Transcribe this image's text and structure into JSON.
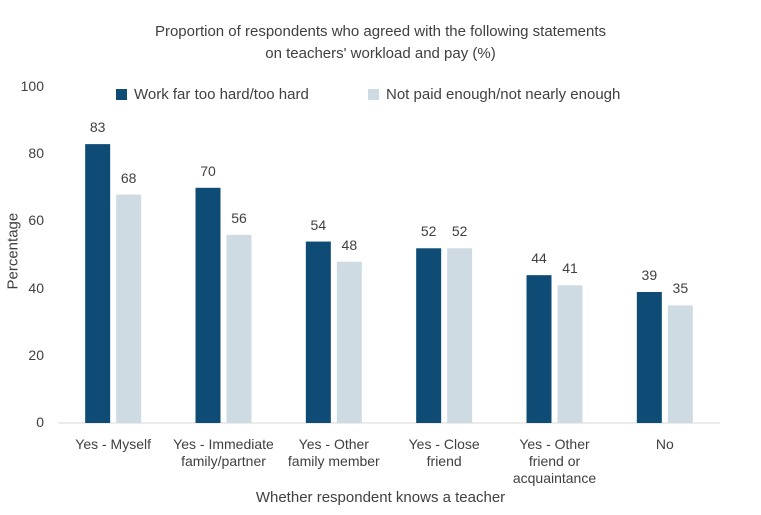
{
  "chart_data": {
    "type": "bar",
    "title_line1": "Proportion of respondents who agreed with the following statements",
    "title_line2": "on teachers' workload and pay (%)",
    "xlabel": "Whether respondent knows a teacher",
    "ylabel": "Percentage",
    "ylim": [
      0,
      100
    ],
    "yticks": [
      "0",
      "20",
      "40",
      "60",
      "80",
      "100"
    ],
    "categories": [
      [
        "Yes - Myself"
      ],
      [
        "Yes - Immediate",
        "family/partner"
      ],
      [
        "Yes - Other",
        "family member"
      ],
      [
        "Yes - Close",
        "friend"
      ],
      [
        "Yes - Other",
        "friend or",
        "acquaintance"
      ],
      [
        "No"
      ]
    ],
    "series": [
      {
        "name": "Work far too hard/too hard",
        "color": "#0f4c75",
        "values": [
          83,
          70,
          54,
          52,
          44,
          39
        ]
      },
      {
        "name": "Not paid enough/not nearly enough",
        "color": "#cfdbe3",
        "values": [
          68,
          56,
          48,
          52,
          41,
          35
        ]
      }
    ],
    "legend_position": "top",
    "grid": false
  }
}
